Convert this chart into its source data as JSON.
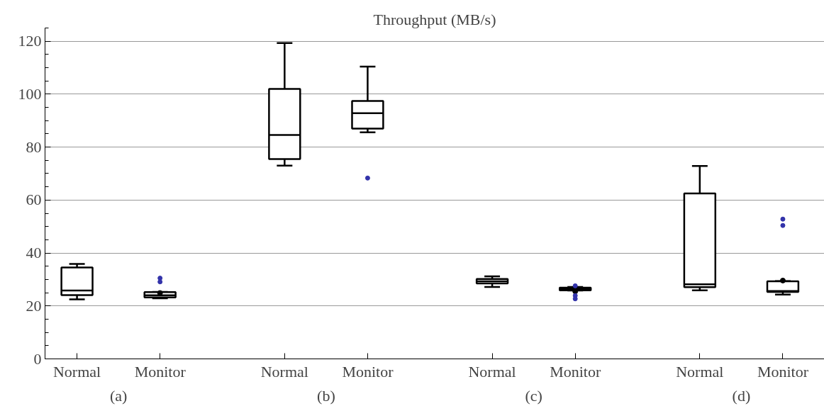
{
  "chart_data": {
    "type": "box",
    "title": "Throughput (MB/s)",
    "categories": [
      "Normal",
      "Monitor",
      "Normal",
      "Monitor",
      "Normal",
      "Monitor",
      "Normal",
      "Monitor"
    ],
    "annotations": [
      "(a)",
      "(b)",
      "(c)",
      "(d)"
    ],
    "boxes": [
      {
        "low": 22.5,
        "q1": 24.1,
        "median": 25.8,
        "q3": 34.5,
        "high": 35.9
      },
      {
        "low": 22.9,
        "q1": 23.2,
        "median": 24.0,
        "q3": 25.2,
        "high": 25.3,
        "mean": 24.9,
        "outliers": [
          30.5,
          29.1
        ]
      },
      {
        "low": 73.0,
        "q1": 75.5,
        "median": 84.6,
        "q3": 102.0,
        "high": 119.3
      },
      {
        "low": 85.6,
        "q1": 87.0,
        "median": 92.8,
        "q3": 97.4,
        "high": 110.4,
        "outliers": [
          68.3
        ]
      },
      {
        "low": 27.2,
        "q1": 28.5,
        "median": 29.3,
        "q3": 30.2,
        "high": 31.2
      },
      {
        "low": 25.8,
        "q1": 25.9,
        "median": 26.3,
        "q3": 26.9,
        "high": 27.2,
        "mean": 25.5,
        "outliers": [
          27.6,
          23.9,
          22.7
        ]
      },
      {
        "low": 25.9,
        "q1": 27.1,
        "median": 28.2,
        "q3": 62.5,
        "high": 72.9
      },
      {
        "low": 24.3,
        "q1": 25.3,
        "median": 25.6,
        "q3": 29.3,
        "high": 29.4,
        "mean": 29.6,
        "outliers": [
          52.8,
          50.4
        ]
      }
    ],
    "ylim": [
      0,
      125
    ],
    "yticks": [
      0,
      20,
      40,
      60,
      80,
      100,
      120
    ],
    "grid": "y",
    "color": "#000000"
  }
}
